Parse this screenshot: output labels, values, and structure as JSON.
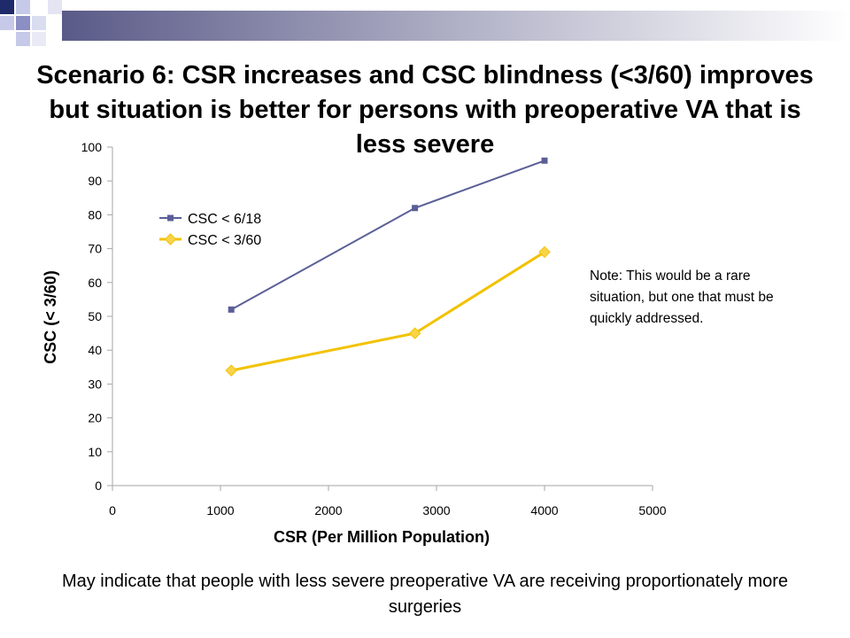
{
  "slide": {
    "title": "Scenario 6: CSR increases and CSC blindness (<3/60) improves but situation is better for persons with preoperative VA that is less severe",
    "note": "Note: This would be a rare situation, but one that must be  quickly addressed.",
    "caption": "May indicate that people with less severe preoperative VA  are receiving proportionately more surgeries"
  },
  "colors": {
    "series1": "#5b5f97",
    "series2": "#f2c200",
    "series2_marker_fill": "#f7d44a",
    "axis": "#a6a6a6"
  },
  "chart_data": {
    "type": "line",
    "xlabel": "CSR (Per Million Population)",
    "ylabel": "CSC (< 3/60)",
    "xlim": [
      0,
      5000
    ],
    "ylim": [
      0,
      100
    ],
    "xticks": [
      0,
      1000,
      2000,
      3000,
      4000,
      5000
    ],
    "yticks": [
      0,
      10,
      20,
      30,
      40,
      50,
      60,
      70,
      80,
      90,
      100
    ],
    "grid": false,
    "legend_position": "top-left",
    "series": [
      {
        "name": "CSC < 6/18",
        "marker": "square",
        "x": [
          1100,
          2800,
          4000
        ],
        "y": [
          52,
          82,
          96
        ]
      },
      {
        "name": "CSC < 3/60",
        "marker": "diamond",
        "x": [
          1100,
          2800,
          4000
        ],
        "y": [
          34,
          45,
          69
        ]
      }
    ]
  }
}
